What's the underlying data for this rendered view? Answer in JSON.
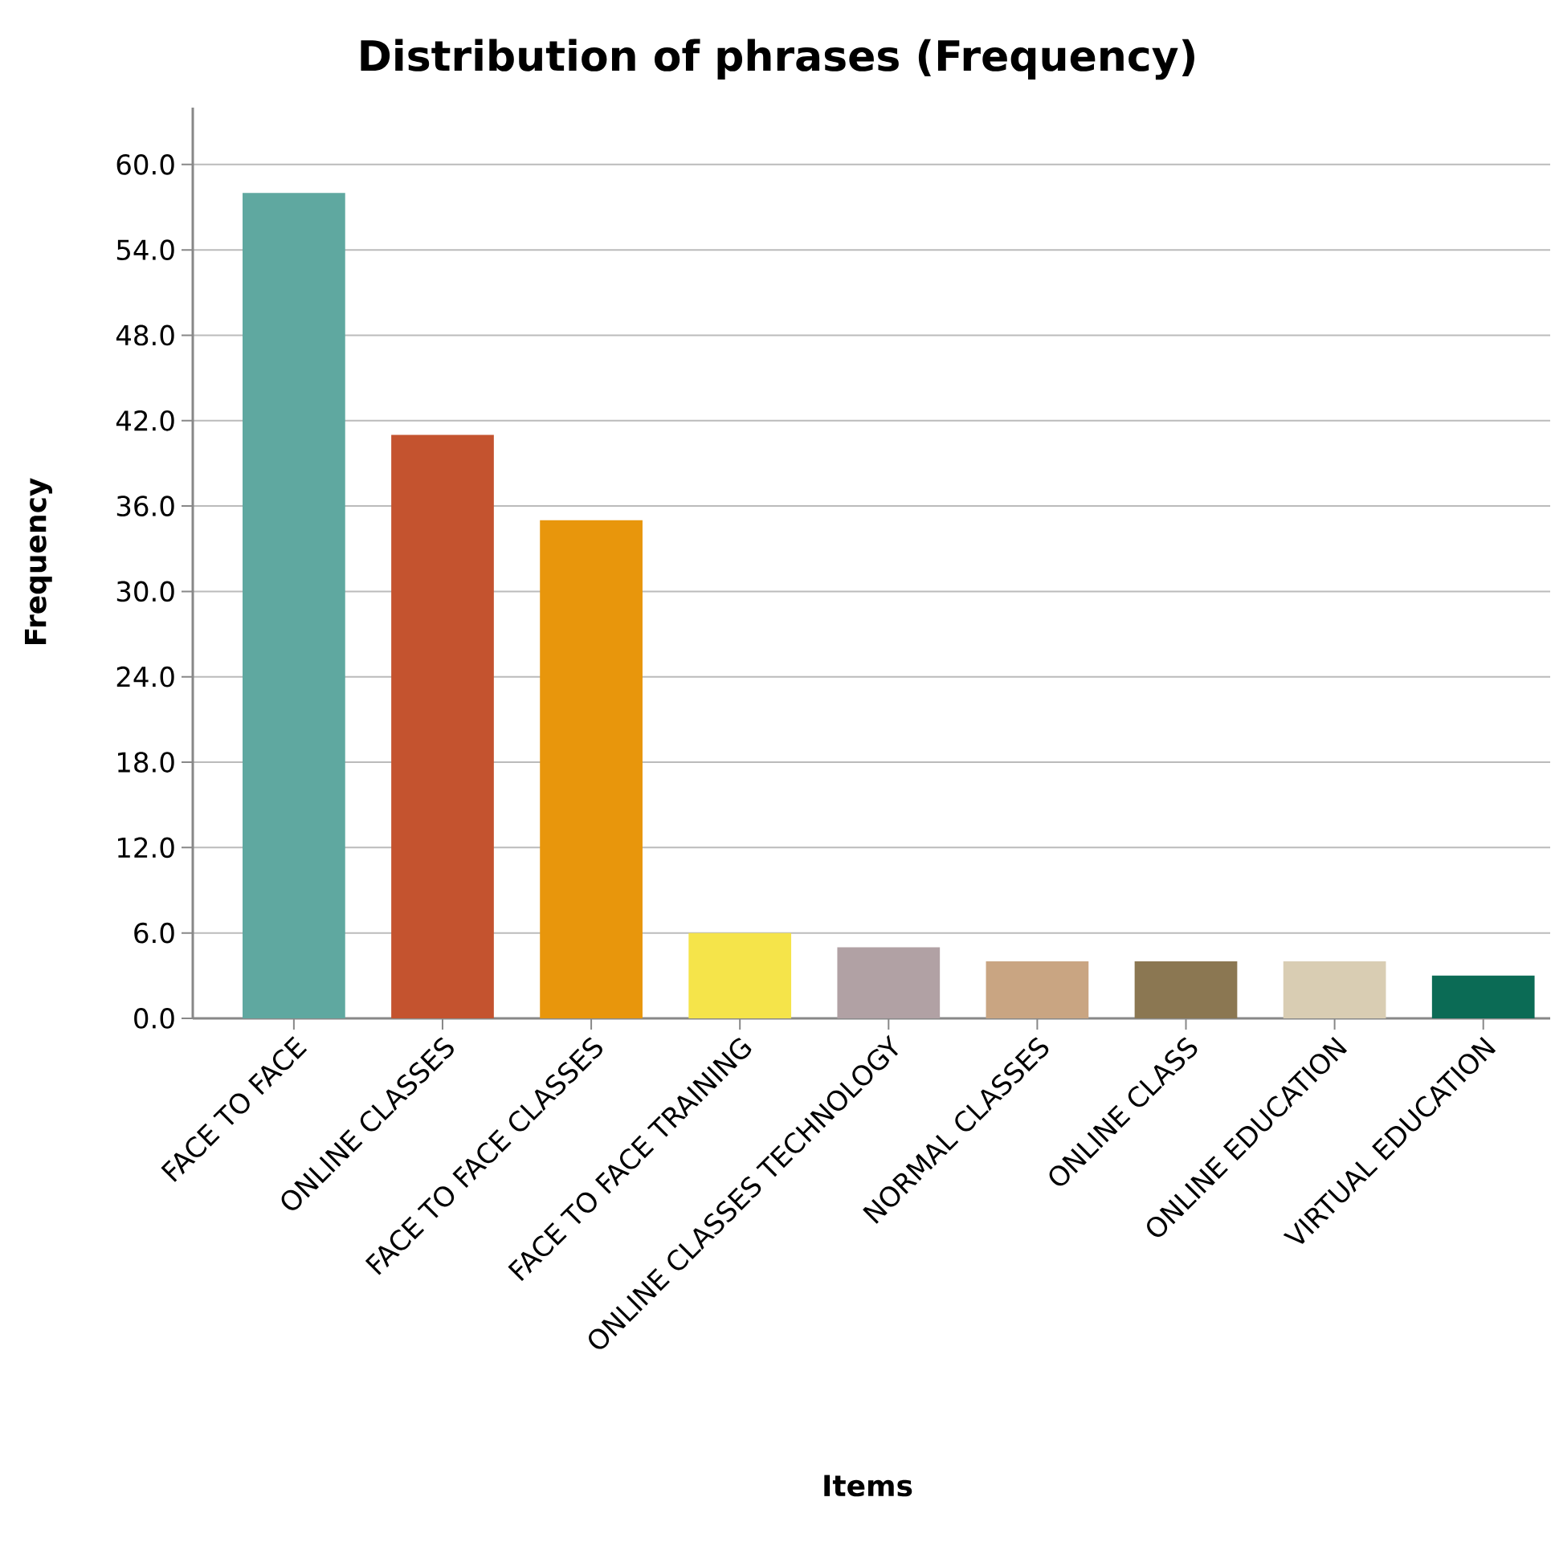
{
  "chart_data": {
    "type": "bar",
    "title": "Distribution of phrases (Frequency)",
    "xlabel": "Items",
    "ylabel": "Frequency",
    "categories": [
      "FACE TO FACE",
      "ONLINE CLASSES",
      "FACE TO FACE CLASSES",
      "FACE TO FACE TRAINING",
      "ONLINE CLASSES TECHNOLOGY",
      "NORMAL CLASSES",
      "ONLINE CLASS",
      "ONLINE EDUCATION",
      "VIRTUAL EDUCATION"
    ],
    "values": [
      58,
      41,
      35,
      6,
      5,
      4,
      4,
      4,
      3
    ],
    "colors": [
      "#5fa8a0",
      "#c4532f",
      "#e8960c",
      "#f5e44a",
      "#b1a1a4",
      "#c9a582",
      "#8b7752",
      "#d9cdb3",
      "#0b6b55"
    ],
    "ylim": [
      0,
      64
    ],
    "yticks": [
      {
        "value": 0,
        "label": "0.0"
      },
      {
        "value": 6,
        "label": "6.0"
      },
      {
        "value": 12,
        "label": "12.0"
      },
      {
        "value": 18,
        "label": "18.0"
      },
      {
        "value": 24,
        "label": "24.0"
      },
      {
        "value": 30,
        "label": "30.0"
      },
      {
        "value": 36,
        "label": "36.0"
      },
      {
        "value": 42,
        "label": "42.0"
      },
      {
        "value": 48,
        "label": "48.0"
      },
      {
        "value": 54,
        "label": "54.0"
      },
      {
        "value": 60,
        "label": "60.0"
      }
    ],
    "grid": "y"
  }
}
